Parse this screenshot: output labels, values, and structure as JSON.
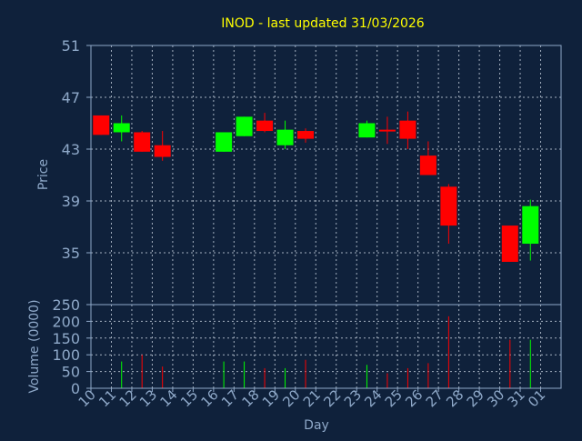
{
  "chart_data": {
    "type": "candlestick",
    "title": "INOD - last updated 31/03/2026",
    "ylabel": "Price",
    "volume_ylabel": "Volume (0000)",
    "xlabel": "Day",
    "price_ylim": [
      31,
      51
    ],
    "price_yticks": [
      51,
      47,
      43,
      39,
      35
    ],
    "volume_ylim": [
      0,
      250
    ],
    "volume_yticks": [
      250,
      200,
      150,
      100,
      50,
      0
    ],
    "x_ticks": [
      "10",
      "11",
      "12",
      "13",
      "14",
      "15",
      "16",
      "17",
      "18",
      "19",
      "20",
      "21",
      "22",
      "23",
      "24",
      "25",
      "26",
      "27",
      "28",
      "29",
      "30",
      "31",
      "01"
    ],
    "grid": true,
    "candles": [
      {
        "day": "10",
        "open": 45.6,
        "close": 44.1,
        "high": 45.6,
        "low": 44.1,
        "volume": 0
      },
      {
        "day": "11",
        "open": 44.3,
        "close": 45.0,
        "high": 45.6,
        "low": 43.6,
        "volume": 80
      },
      {
        "day": "12",
        "open": 44.3,
        "close": 42.8,
        "high": 44.4,
        "low": 42.8,
        "volume": 100
      },
      {
        "day": "13",
        "open": 43.3,
        "close": 42.4,
        "high": 44.4,
        "low": 42.1,
        "volume": 65
      },
      {
        "day": "16",
        "open": 42.8,
        "close": 44.3,
        "high": 44.3,
        "low": 42.8,
        "volume": 80
      },
      {
        "day": "17",
        "open": 44.0,
        "close": 45.5,
        "high": 45.5,
        "low": 44.0,
        "volume": 80
      },
      {
        "day": "18",
        "open": 45.2,
        "close": 44.4,
        "high": 45.8,
        "low": 44.3,
        "volume": 60
      },
      {
        "day": "19",
        "open": 43.3,
        "close": 44.5,
        "high": 45.2,
        "low": 43.0,
        "volume": 60
      },
      {
        "day": "20",
        "open": 44.4,
        "close": 43.8,
        "high": 44.6,
        "low": 43.5,
        "volume": 85
      },
      {
        "day": "23",
        "open": 43.9,
        "close": 45.0,
        "high": 45.2,
        "low": 43.9,
        "volume": 70
      },
      {
        "day": "24",
        "open": 44.5,
        "close": 44.4,
        "high": 45.5,
        "low": 43.4,
        "volume": 45
      },
      {
        "day": "25",
        "open": 45.2,
        "close": 43.8,
        "high": 45.9,
        "low": 43.0,
        "volume": 60
      },
      {
        "day": "26",
        "open": 42.5,
        "close": 41.0,
        "high": 43.6,
        "low": 41.0,
        "volume": 75
      },
      {
        "day": "27",
        "open": 40.1,
        "close": 37.1,
        "high": 40.3,
        "low": 35.7,
        "volume": 215
      },
      {
        "day": "30",
        "open": 37.1,
        "close": 34.3,
        "high": 37.1,
        "low": 34.3,
        "volume": 145
      },
      {
        "day": "31",
        "open": 35.7,
        "close": 38.6,
        "high": 39.1,
        "low": 34.4,
        "volume": 145
      }
    ]
  },
  "colors": {
    "background": "#0f213b",
    "axis": "#8fa9c9",
    "grid": "#c9d3e0",
    "title": "#ffff00",
    "up": "#00ff00",
    "down": "#ff0000"
  }
}
